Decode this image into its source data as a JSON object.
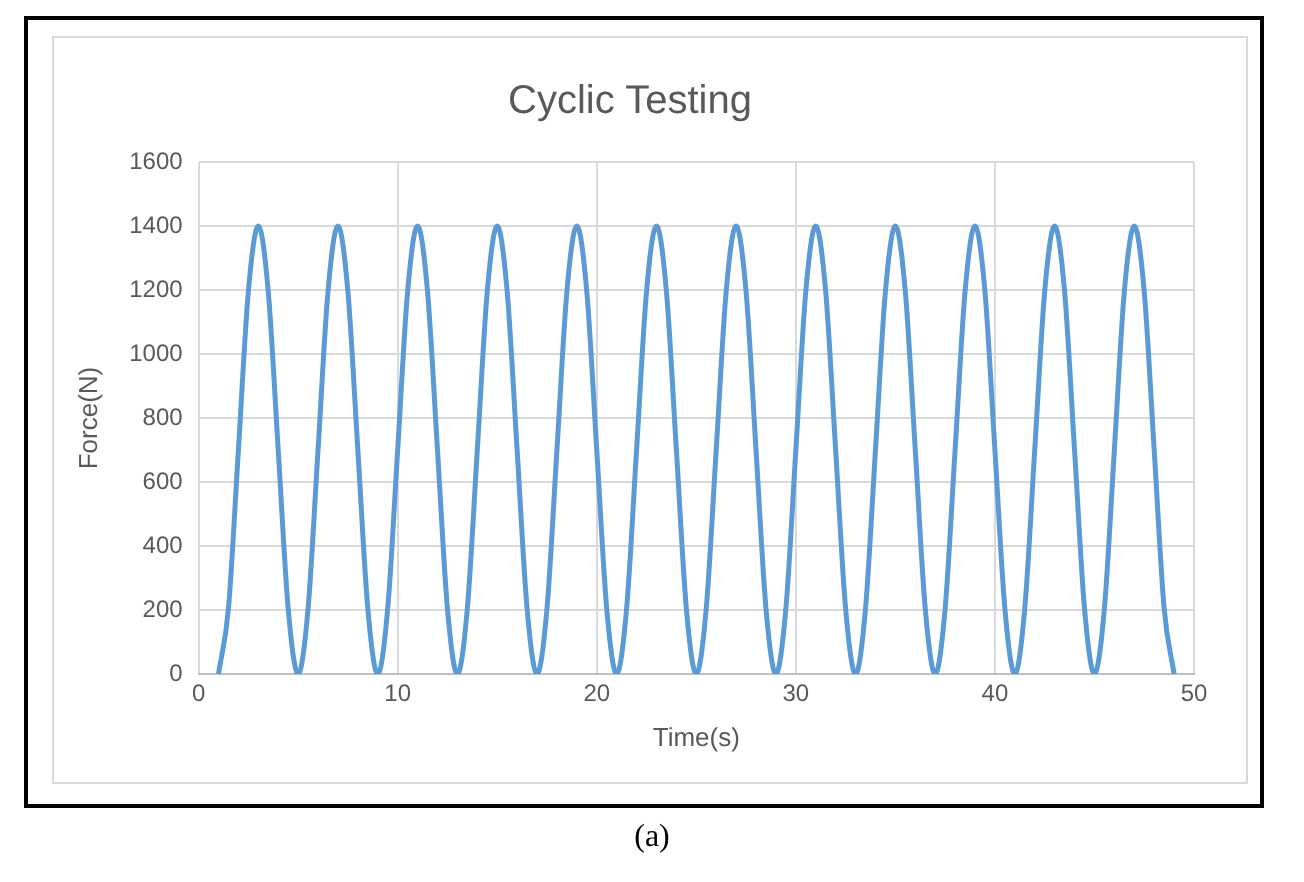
{
  "chart_data": {
    "type": "line",
    "title": "Cyclic Testing",
    "xlabel": "Time(s)",
    "ylabel": "Force(N)",
    "annotations": [
      "(a)"
    ],
    "x": [
      1,
      1.5,
      2,
      2.5,
      3,
      3.5,
      4,
      4.5,
      5,
      5.5,
      6,
      6.5,
      7,
      7.5,
      8,
      8.5,
      9,
      9.5,
      10,
      10.5,
      11,
      11.5,
      12,
      12.5,
      13,
      13.5,
      14,
      14.5,
      15,
      15.5,
      16,
      16.5,
      17,
      17.5,
      18,
      18.5,
      19,
      19.5,
      20,
      20.5,
      21,
      21.5,
      22,
      22.5,
      23,
      23.5,
      24,
      24.5,
      25,
      25.5,
      26,
      26.5,
      27,
      27.5,
      28,
      28.5,
      29,
      29.5,
      30,
      30.5,
      31,
      31.5,
      32,
      32.5,
      33,
      33.5,
      34,
      34.5,
      35,
      35.5,
      36,
      36.5,
      37,
      37.5,
      38,
      38.5,
      39,
      39.5,
      40,
      40.5,
      41,
      41.5,
      42,
      42.5,
      43,
      43.5,
      44,
      44.5,
      45,
      45.5,
      46,
      46.5,
      47,
      47.5,
      48,
      48.5,
      49
    ],
    "series": [
      {
        "color": "#5b9bd5",
        "values": [
          0,
          205,
          700,
          1195,
          1400,
          1195,
          700,
          205,
          0,
          205,
          700,
          1195,
          1400,
          1195,
          700,
          205,
          0,
          205,
          700,
          1195,
          1400,
          1195,
          700,
          205,
          0,
          205,
          700,
          1195,
          1400,
          1195,
          700,
          205,
          0,
          205,
          700,
          1195,
          1400,
          1195,
          700,
          205,
          0,
          205,
          700,
          1195,
          1400,
          1195,
          700,
          205,
          0,
          205,
          700,
          1195,
          1400,
          1195,
          700,
          205,
          0,
          205,
          700,
          1195,
          1400,
          1195,
          700,
          205,
          0,
          205,
          700,
          1195,
          1400,
          1195,
          700,
          205,
          0,
          205,
          700,
          1195,
          1400,
          1195,
          700,
          205,
          0,
          205,
          700,
          1195,
          1400,
          1195,
          700,
          205,
          0,
          205,
          700,
          1195,
          1400,
          1195,
          700,
          205,
          0
        ]
      }
    ],
    "xlim": [
      0,
      50
    ],
    "xticks": [
      0,
      10,
      20,
      30,
      40,
      50
    ],
    "ylim": [
      0,
      1600
    ],
    "yticks": [
      0,
      200,
      400,
      600,
      800,
      1000,
      1200,
      1400,
      1600
    ],
    "grid": true,
    "legend": false,
    "marker": "none",
    "line_style": "solid"
  }
}
